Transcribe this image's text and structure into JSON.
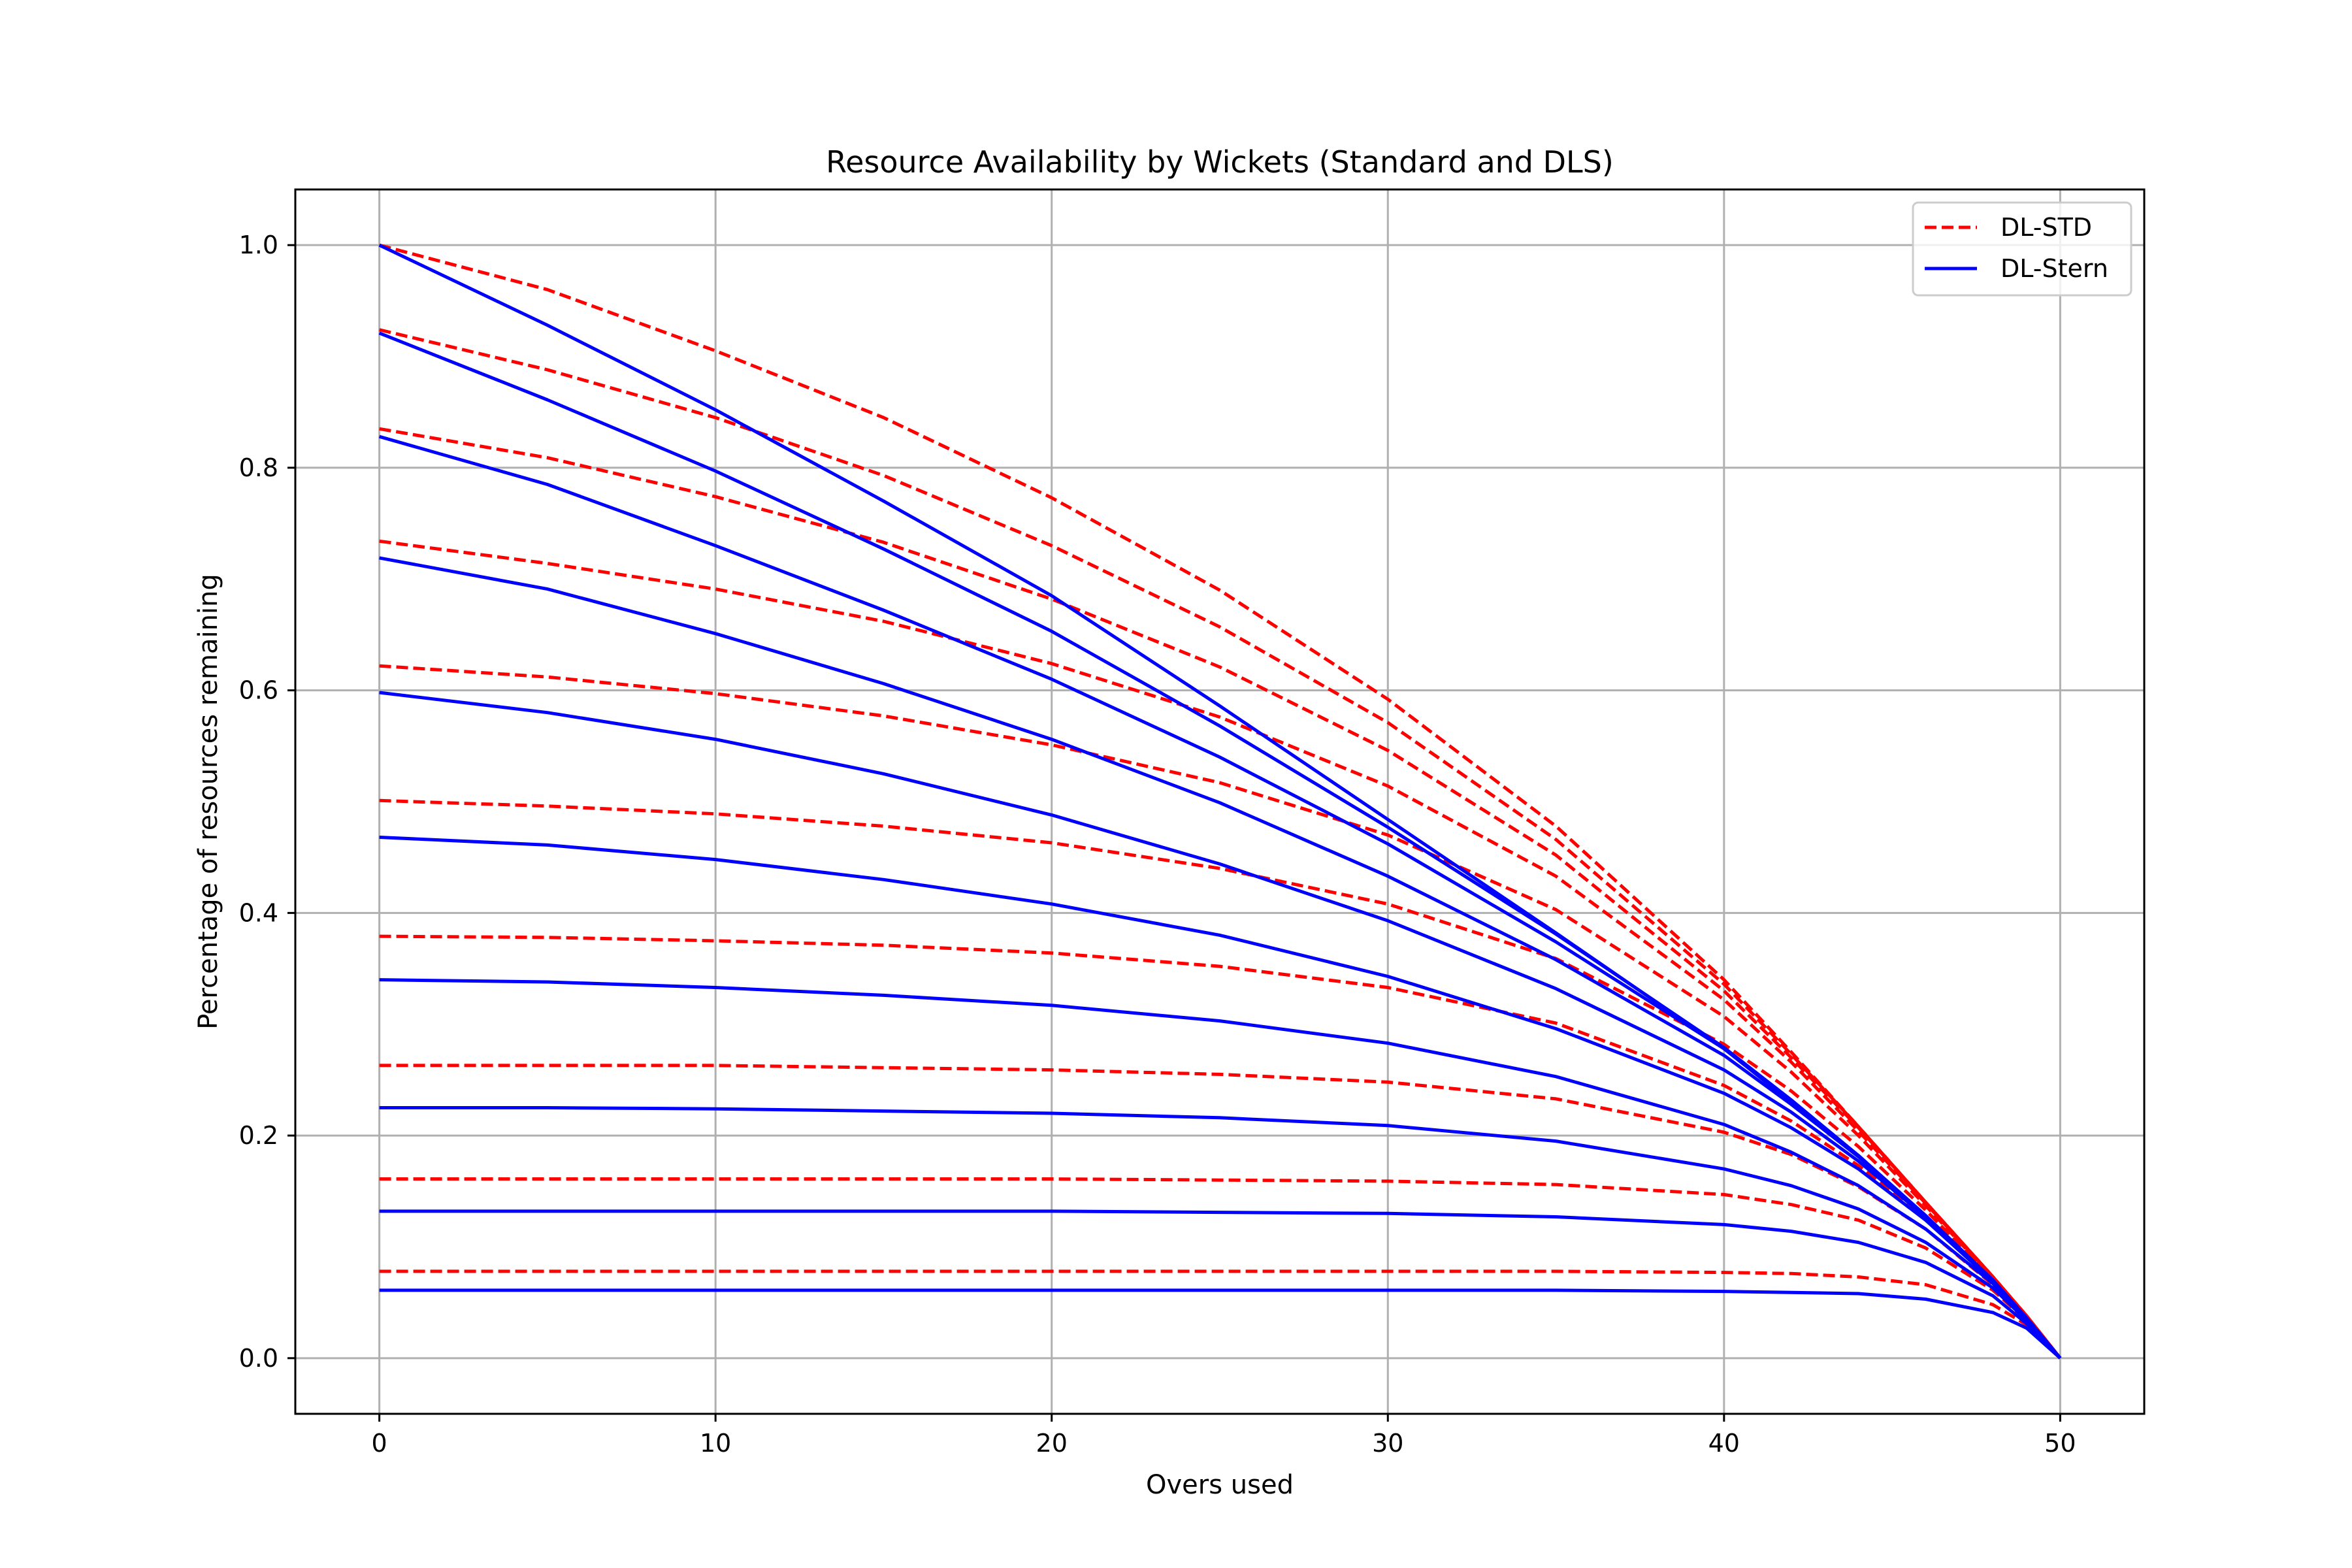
{
  "chart_data": {
    "type": "line",
    "title": "Resource Availability by Wickets (Standard and DLS)",
    "xlabel": "Overs used",
    "ylabel": "Percentage of resources remaining",
    "xlim": [
      -2.5,
      52.5
    ],
    "ylim": [
      -0.05,
      1.05
    ],
    "xticks": [
      0,
      10,
      20,
      30,
      40,
      50
    ],
    "xtick_labels": [
      "0",
      "10",
      "20",
      "30",
      "40",
      "50"
    ],
    "yticks": [
      0.0,
      0.2,
      0.4,
      0.6,
      0.8,
      1.0
    ],
    "ytick_labels": [
      "0.0",
      "0.2",
      "0.4",
      "0.6",
      "0.8",
      "1.0"
    ],
    "grid": true,
    "legend_position": "top-right",
    "legend": [
      {
        "label": "DL-STD",
        "color": "#ff0000",
        "style": "dashed"
      },
      {
        "label": "DL-Stern",
        "color": "#0000ff",
        "style": "solid"
      }
    ],
    "x": [
      0,
      5,
      10,
      15,
      20,
      25,
      30,
      35,
      40,
      42,
      44,
      46,
      48,
      49,
      50
    ],
    "series": [
      {
        "group": "DL-STD",
        "color": "#ff0000",
        "style": "dashed",
        "values": [
          1.0,
          0.96,
          0.905,
          0.845,
          0.773,
          0.69,
          0.592,
          0.478,
          0.34,
          0.275,
          0.208,
          0.14,
          0.073,
          0.038,
          0.0
        ]
      },
      {
        "group": "DL-STD",
        "color": "#ff0000",
        "style": "dashed",
        "values": [
          0.924,
          0.888,
          0.845,
          0.793,
          0.73,
          0.657,
          0.571,
          0.466,
          0.336,
          0.273,
          0.208,
          0.14,
          0.073,
          0.038,
          0.0
        ]
      },
      {
        "group": "DL-STD",
        "color": "#ff0000",
        "style": "dashed",
        "values": [
          0.835,
          0.809,
          0.774,
          0.733,
          0.682,
          0.621,
          0.546,
          0.452,
          0.33,
          0.27,
          0.207,
          0.14,
          0.073,
          0.038,
          0.0
        ]
      },
      {
        "group": "DL-STD",
        "color": "#ff0000",
        "style": "dashed",
        "values": [
          0.734,
          0.714,
          0.691,
          0.662,
          0.624,
          0.576,
          0.514,
          0.433,
          0.322,
          0.266,
          0.204,
          0.139,
          0.073,
          0.038,
          0.0
        ]
      },
      {
        "group": "DL-STD",
        "color": "#ff0000",
        "style": "dashed",
        "values": [
          0.622,
          0.612,
          0.597,
          0.577,
          0.551,
          0.517,
          0.47,
          0.403,
          0.307,
          0.257,
          0.2,
          0.137,
          0.072,
          0.038,
          0.0
        ]
      },
      {
        "group": "DL-STD",
        "color": "#ff0000",
        "style": "dashed",
        "values": [
          0.501,
          0.496,
          0.489,
          0.478,
          0.463,
          0.44,
          0.408,
          0.359,
          0.282,
          0.24,
          0.19,
          0.133,
          0.071,
          0.037,
          0.0
        ]
      },
      {
        "group": "DL-STD",
        "color": "#ff0000",
        "style": "dashed",
        "values": [
          0.379,
          0.378,
          0.375,
          0.371,
          0.364,
          0.352,
          0.333,
          0.301,
          0.245,
          0.213,
          0.173,
          0.125,
          0.069,
          0.037,
          0.0
        ]
      },
      {
        "group": "DL-STD",
        "color": "#ff0000",
        "style": "dashed",
        "values": [
          0.263,
          0.263,
          0.263,
          0.261,
          0.259,
          0.255,
          0.248,
          0.233,
          0.203,
          0.183,
          0.154,
          0.116,
          0.066,
          0.036,
          0.0
        ]
      },
      {
        "group": "DL-STD",
        "color": "#ff0000",
        "style": "dashed",
        "values": [
          0.161,
          0.161,
          0.161,
          0.161,
          0.161,
          0.16,
          0.159,
          0.156,
          0.147,
          0.138,
          0.124,
          0.099,
          0.061,
          0.034,
          0.0
        ]
      },
      {
        "group": "DL-STD",
        "color": "#ff0000",
        "style": "dashed",
        "values": [
          0.078,
          0.078,
          0.078,
          0.078,
          0.078,
          0.078,
          0.078,
          0.078,
          0.077,
          0.076,
          0.073,
          0.066,
          0.048,
          0.03,
          0.0
        ]
      },
      {
        "group": "DL-Stern",
        "color": "#0000ff",
        "style": "solid",
        "values": [
          1.0,
          0.928,
          0.852,
          0.77,
          0.685,
          0.586,
          0.484,
          0.382,
          0.278,
          0.23,
          0.182,
          0.128,
          0.07,
          0.036,
          0.0
        ]
      },
      {
        "group": "DL-Stern",
        "color": "#0000ff",
        "style": "solid",
        "values": [
          0.921,
          0.861,
          0.797,
          0.727,
          0.653,
          0.568,
          0.477,
          0.381,
          0.279,
          0.232,
          0.182,
          0.128,
          0.07,
          0.036,
          0.0
        ]
      },
      {
        "group": "DL-Stern",
        "color": "#0000ff",
        "style": "solid",
        "values": [
          0.828,
          0.785,
          0.73,
          0.672,
          0.61,
          0.54,
          0.462,
          0.374,
          0.278,
          0.231,
          0.182,
          0.128,
          0.07,
          0.036,
          0.0
        ]
      },
      {
        "group": "DL-Stern",
        "color": "#0000ff",
        "style": "solid",
        "values": [
          0.719,
          0.691,
          0.651,
          0.606,
          0.556,
          0.499,
          0.433,
          0.358,
          0.272,
          0.228,
          0.181,
          0.128,
          0.07,
          0.036,
          0.0
        ]
      },
      {
        "group": "DL-Stern",
        "color": "#0000ff",
        "style": "solid",
        "values": [
          0.598,
          0.58,
          0.556,
          0.525,
          0.488,
          0.444,
          0.393,
          0.332,
          0.259,
          0.221,
          0.177,
          0.127,
          0.07,
          0.036,
          0.0
        ]
      },
      {
        "group": "DL-Stern",
        "color": "#0000ff",
        "style": "solid",
        "values": [
          0.468,
          0.461,
          0.448,
          0.43,
          0.408,
          0.38,
          0.343,
          0.296,
          0.238,
          0.207,
          0.17,
          0.124,
          0.069,
          0.036,
          0.0
        ]
      },
      {
        "group": "DL-Stern",
        "color": "#0000ff",
        "style": "solid",
        "values": [
          0.34,
          0.338,
          0.333,
          0.326,
          0.317,
          0.303,
          0.283,
          0.253,
          0.21,
          0.185,
          0.155,
          0.116,
          0.067,
          0.035,
          0.0
        ]
      },
      {
        "group": "DL-Stern",
        "color": "#0000ff",
        "style": "solid",
        "values": [
          0.225,
          0.225,
          0.224,
          0.222,
          0.22,
          0.216,
          0.209,
          0.195,
          0.17,
          0.155,
          0.134,
          0.104,
          0.063,
          0.034,
          0.0
        ]
      },
      {
        "group": "DL-Stern",
        "color": "#0000ff",
        "style": "solid",
        "values": [
          0.132,
          0.132,
          0.132,
          0.132,
          0.132,
          0.131,
          0.13,
          0.127,
          0.12,
          0.114,
          0.104,
          0.086,
          0.056,
          0.031,
          0.0
        ]
      },
      {
        "group": "DL-Stern",
        "color": "#0000ff",
        "style": "solid",
        "values": [
          0.061,
          0.061,
          0.061,
          0.061,
          0.061,
          0.061,
          0.061,
          0.061,
          0.06,
          0.059,
          0.058,
          0.053,
          0.041,
          0.027,
          0.0
        ]
      }
    ]
  }
}
